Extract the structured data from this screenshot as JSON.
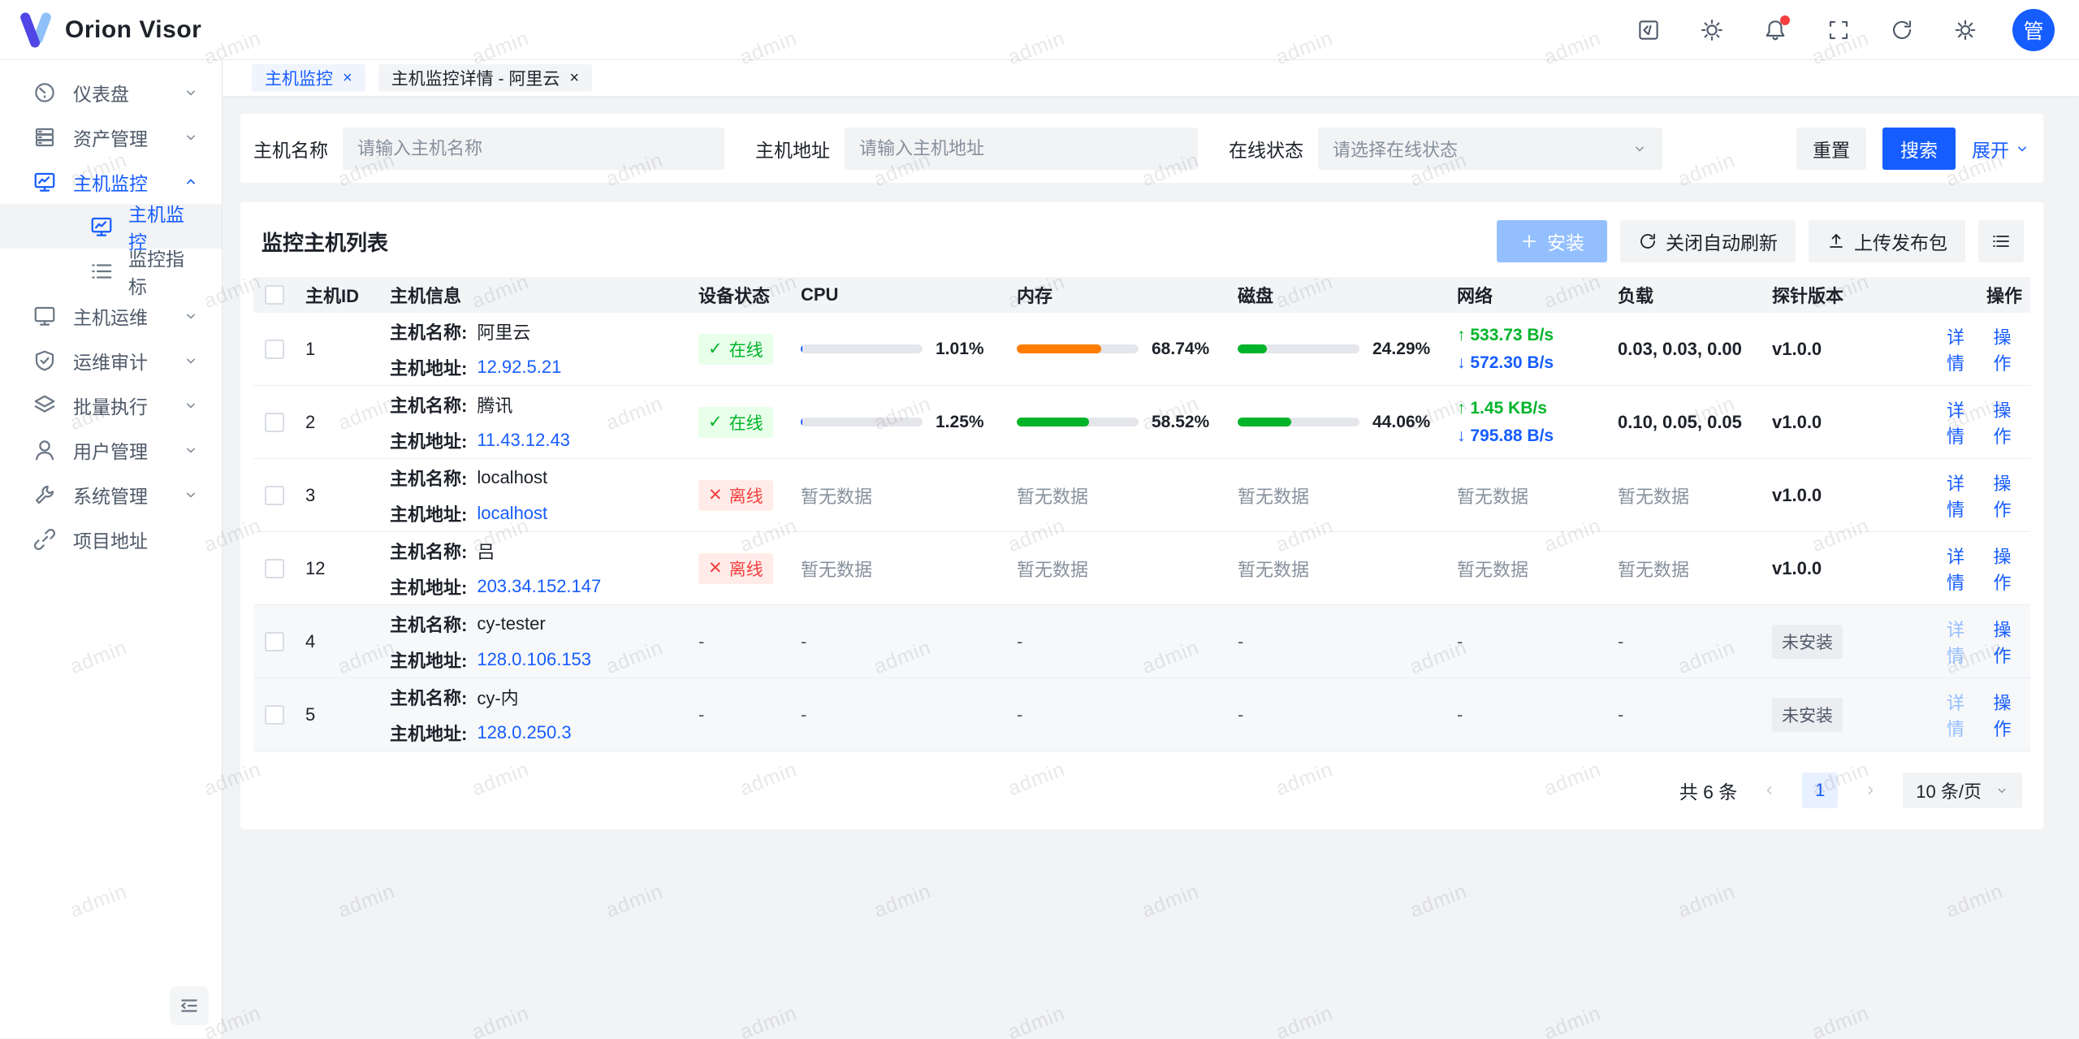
{
  "app": {
    "name": "Orion Visor"
  },
  "colors": {
    "primary": "#165dff",
    "green": "#00b42a",
    "red": "#f53f3f",
    "orange": "#ff7d00",
    "online_bg": "#e8ffea",
    "offline_bg": "#ffece8",
    "link_disabled": "#94bfff",
    "bg": "#f2f3f5",
    "text": "#1d2129"
  },
  "header": {
    "icons": [
      "code-icon",
      "theme-icon",
      "notifications-icon",
      "fullscreen-icon",
      "refresh-icon",
      "settings-icon"
    ],
    "avatar_text": "管"
  },
  "sidebar": {
    "items": [
      {
        "label": "仪表盘"
      },
      {
        "label": "资产管理"
      },
      {
        "label": "主机监控",
        "children": [
          {
            "label": "主机监控"
          },
          {
            "label": "监控指标"
          }
        ]
      },
      {
        "label": "主机运维"
      },
      {
        "label": "运维审计"
      },
      {
        "label": "批量执行"
      },
      {
        "label": "用户管理"
      },
      {
        "label": "系统管理"
      },
      {
        "label": "项目地址"
      }
    ]
  },
  "tabs": [
    {
      "label": "主机监控",
      "close": "×"
    },
    {
      "label": "主机监控详情 - 阿里云",
      "close": "×"
    }
  ],
  "filter": {
    "name_label": "主机名称",
    "name_placeholder": "请输入主机名称",
    "addr_label": "主机地址",
    "addr_placeholder": "请输入主机地址",
    "status_label": "在线状态",
    "status_placeholder": "请选择在线状态",
    "reset": "重置",
    "search": "搜索",
    "expand": "展开"
  },
  "list": {
    "title": "监控主机列表",
    "install": "安装",
    "auto_refresh": "关闭自动刷新",
    "upload": "上传发布包"
  },
  "labels": {
    "host_name": "主机名称:",
    "host_addr": "主机地址:",
    "detail": "详情",
    "operate": "操作",
    "no_data": "暂无数据",
    "dash": "-"
  },
  "table": {
    "columns": [
      "主机ID",
      "主机信息",
      "设备状态",
      "CPU",
      "内存",
      "磁盘",
      "网络",
      "负载",
      "探针版本",
      "操作"
    ],
    "rows": [
      {
        "id": "1",
        "name": "阿里云",
        "address": "12.92.5.21",
        "status_text": "在线",
        "cpu": "1.01%",
        "cpu_fill": 1,
        "mem": "68.74%",
        "mem_fill": 69,
        "disk": "24.29%",
        "disk_fill": 24,
        "net_up": "↑ 533.73 B/s",
        "net_down": "↓ 572.30 B/s",
        "load": "0.03, 0.03, 0.00",
        "version": "v1.0.0"
      },
      {
        "id": "2",
        "name": "腾讯",
        "address": "11.43.12.43",
        "status_text": "在线",
        "cpu": "1.25%",
        "cpu_fill": 1,
        "mem": "58.52%",
        "mem_fill": 59,
        "disk": "44.06%",
        "disk_fill": 44,
        "net_up": "↑ 1.45 KB/s",
        "net_down": "↓ 795.88 B/s",
        "load": "0.10, 0.05, 0.05",
        "version": "v1.0.0"
      },
      {
        "id": "3",
        "name": "localhost",
        "address": "localhost",
        "status_text": "离线",
        "cpu": "暂无数据",
        "mem": "暂无数据",
        "disk": "暂无数据",
        "net": "暂无数据",
        "load": "暂无数据",
        "version": "v1.0.0"
      },
      {
        "id": "12",
        "name": "吕",
        "address": "203.34.152.147",
        "status_text": "离线",
        "cpu": "暂无数据",
        "mem": "暂无数据",
        "disk": "暂无数据",
        "net": "暂无数据",
        "load": "暂无数据",
        "version": "v1.0.0"
      },
      {
        "id": "4",
        "name": "cy-tester",
        "address": "128.0.106.153",
        "status_text": "-",
        "cpu": "-",
        "mem": "-",
        "disk": "-",
        "net": "-",
        "load": "-",
        "version_tag": "未安装"
      },
      {
        "id": "5",
        "name": "cy-内",
        "address": "128.0.250.3",
        "status_text": "-",
        "cpu": "-",
        "mem": "-",
        "disk": "-",
        "net": "-",
        "load": "-",
        "version_tag": "未安装"
      }
    ]
  },
  "pagination": {
    "total": "共 6 条",
    "page": "1",
    "size": "10 条/页"
  },
  "watermark": {
    "text": "admin"
  },
  "status_icons": {
    "online": "✓",
    "offline": "✕"
  }
}
